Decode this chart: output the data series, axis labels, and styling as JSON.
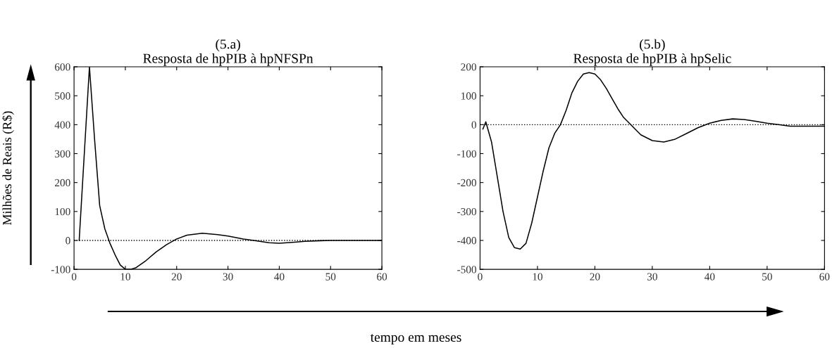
{
  "chart_data": [
    {
      "type": "line",
      "title": "(5.a)\nResposta de hpPIB à hpNFSPn",
      "ylabel": "Milhões de Reais (R$)",
      "xlabel": "tempo em meses",
      "xlim": [
        0,
        60
      ],
      "xticks": [
        0,
        10,
        20,
        30,
        40,
        50,
        60
      ],
      "ylim": [
        -100,
        600
      ],
      "yticks": [
        -100,
        0,
        100,
        200,
        300,
        400,
        500,
        600
      ],
      "grid": false,
      "line_style": "solid",
      "marker": "none",
      "ref_lines": [
        {
          "axis": "y",
          "value": 0,
          "line_style": "dotted",
          "color": "#000000"
        }
      ],
      "series": [
        {
          "color": "#000000",
          "x": [
            1,
            2,
            3,
            4,
            5,
            6,
            7,
            8,
            9,
            10,
            11,
            12,
            14,
            16,
            18,
            20,
            22,
            25,
            28,
            30,
            33,
            35,
            38,
            40,
            43,
            45,
            48,
            50,
            55,
            60
          ],
          "values": [
            0,
            300,
            600,
            350,
            120,
            40,
            -10,
            -50,
            -85,
            -100,
            -100,
            -95,
            -70,
            -40,
            -15,
            5,
            18,
            25,
            20,
            15,
            5,
            0,
            -8,
            -10,
            -6,
            -3,
            -1,
            0,
            0,
            0
          ]
        }
      ]
    },
    {
      "type": "line",
      "title": "(5.b)\nResposta de hpPIB à hpSelic",
      "xlim": [
        0,
        60
      ],
      "xticks": [
        0,
        10,
        20,
        30,
        40,
        50,
        60
      ],
      "ylim": [
        -500,
        200
      ],
      "yticks": [
        -500,
        -400,
        -300,
        -200,
        -100,
        0,
        100,
        200
      ],
      "grid": false,
      "line_style": "solid",
      "marker": "none",
      "ref_lines": [
        {
          "axis": "y",
          "value": 0,
          "line_style": "dotted",
          "color": "#000000"
        }
      ],
      "series": [
        {
          "color": "#000000",
          "x": [
            0.5,
            1,
            2,
            3,
            4,
            5,
            6,
            7,
            8,
            9,
            10,
            11,
            12,
            13,
            14,
            15,
            16,
            17,
            18,
            19,
            20,
            21,
            22,
            23,
            24,
            25,
            26,
            27,
            28,
            30,
            32,
            34,
            36,
            38,
            40,
            42,
            44,
            46,
            48,
            50,
            52,
            54,
            57,
            60
          ],
          "values": [
            -15,
            10,
            -60,
            -180,
            -300,
            -390,
            -425,
            -430,
            -410,
            -340,
            -250,
            -160,
            -80,
            -30,
            0,
            50,
            110,
            150,
            175,
            180,
            175,
            155,
            125,
            90,
            55,
            25,
            5,
            -15,
            -35,
            -55,
            -60,
            -50,
            -30,
            -10,
            5,
            15,
            20,
            18,
            12,
            5,
            0,
            -5,
            -5,
            -5
          ]
        }
      ]
    }
  ]
}
